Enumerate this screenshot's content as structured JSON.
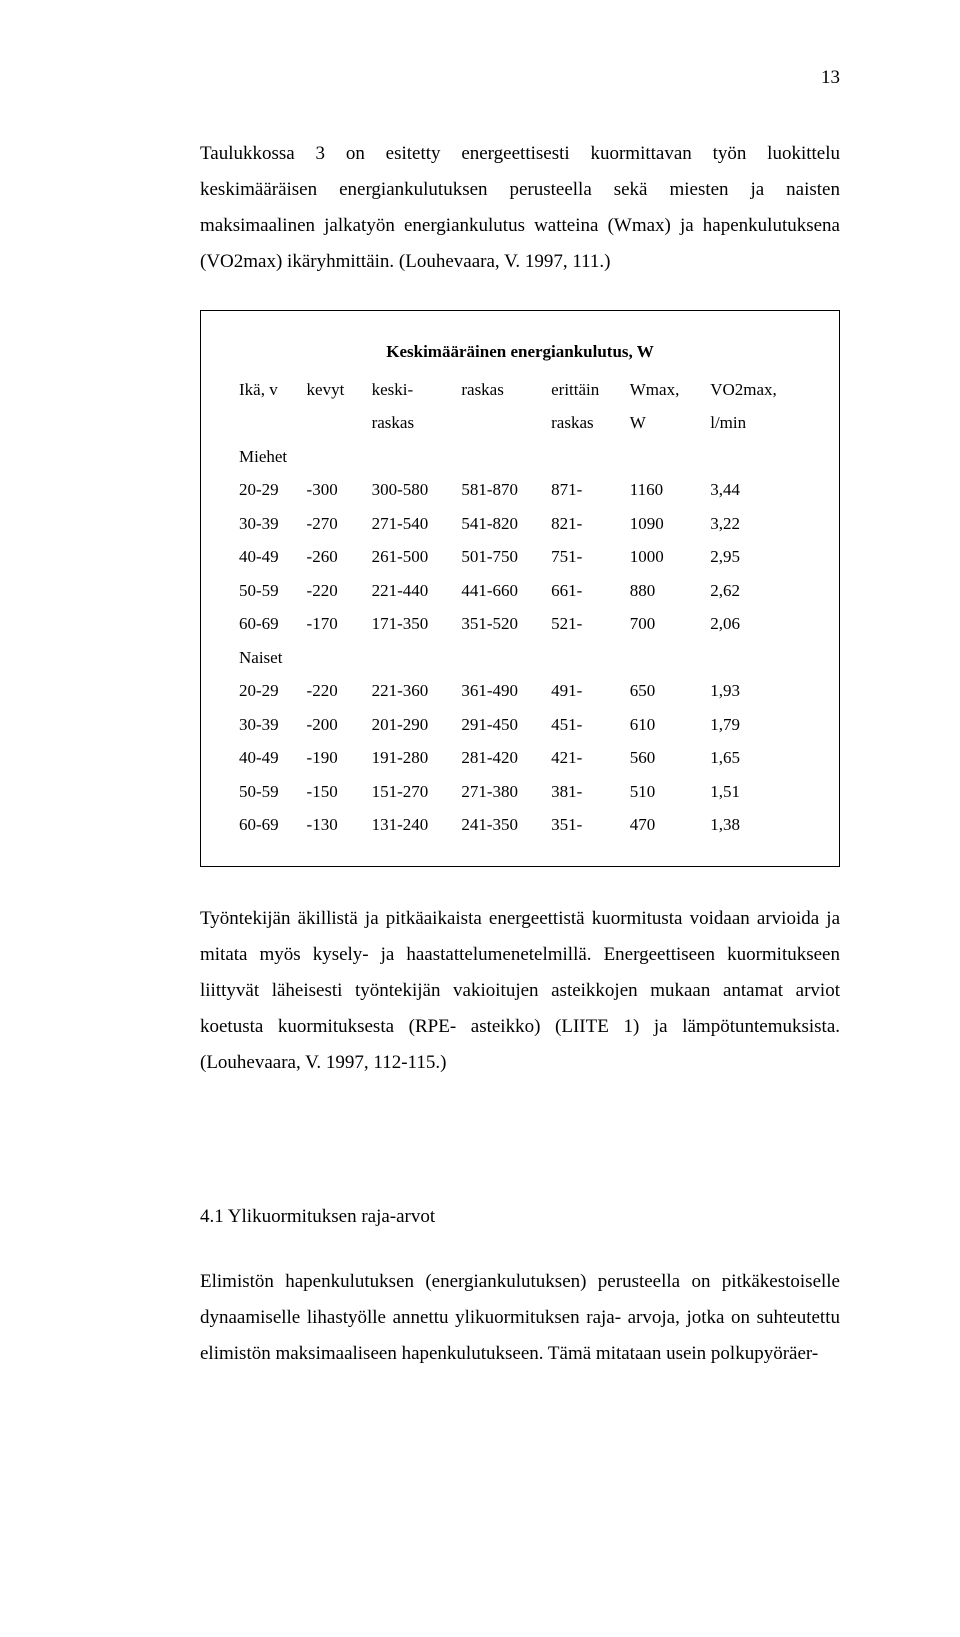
{
  "pageNumber": "13",
  "para1": "Taulukkossa 3 on esitetty energeettisesti kuormittavan työn luokittelu keskimääräisen energiankulutuksen perusteella sekä miesten ja naisten maksimaalinen jalkatyön energiankulutus watteina (Wmax) ja hapenkulutuksena (VO2max) ikäryhmittäin. (Louhevaara, V. 1997, 111.)",
  "table": {
    "title": "Keskimääräinen energiankulutus, W",
    "header": {
      "col1_l1": "Ikä, v",
      "col2_l1": "kevyt",
      "col3_l1": "keski-",
      "col4_l1": "raskas",
      "col5_l1": "erittäin",
      "col6_l1": "Wmax,",
      "col7_l1": "VO2max,",
      "col3_l2": "raskas",
      "col5_l2": "raskas",
      "col6_l2": "W",
      "col7_l2": "l/min"
    },
    "menLabel": "Miehet",
    "menRows": [
      [
        "20-29",
        "-300",
        "300-580",
        "581-870",
        "871-",
        "1160",
        "3,44"
      ],
      [
        "30-39",
        "-270",
        "271-540",
        "541-820",
        "821-",
        "1090",
        "3,22"
      ],
      [
        "40-49",
        "-260",
        "261-500",
        "501-750",
        "751-",
        "1000",
        "2,95"
      ],
      [
        "50-59",
        "-220",
        "221-440",
        "441-660",
        "661-",
        "880",
        "2,62"
      ],
      [
        "60-69",
        "-170",
        "171-350",
        "351-520",
        "521-",
        "700",
        "2,06"
      ]
    ],
    "womenLabel": "Naiset",
    "womenRows": [
      [
        "20-29",
        "-220",
        "221-360",
        "361-490",
        "491-",
        "650",
        "1,93"
      ],
      [
        "30-39",
        "-200",
        "201-290",
        "291-450",
        "451-",
        "610",
        "1,79"
      ],
      [
        "40-49",
        "-190",
        "191-280",
        "281-420",
        "421-",
        "560",
        "1,65"
      ],
      [
        "50-59",
        "-150",
        "151-270",
        "271-380",
        "381-",
        "510",
        "1,51"
      ],
      [
        "60-69",
        "-130",
        "131-240",
        "241-350",
        "351-",
        "470",
        "1,38"
      ]
    ]
  },
  "para2": "Työntekijän äkillistä ja pitkäaikaista energeettistä kuormitusta voidaan arvioida ja mitata myös kysely- ja haastattelumenetelmillä. Energeettiseen kuormitukseen liittyvät läheisesti työntekijän vakioitujen asteikkojen mukaan antamat arviot koetusta kuormituksesta (RPE- asteikko) (LIITE 1) ja lämpötuntemuksista. (Louhevaara, V. 1997, 112-115.)",
  "subheading": "4.1 Ylikuormituksen raja-arvot",
  "para3": "Elimistön hapenkulutuksen (energiankulutuksen) perusteella on pitkäkestoiselle dynaamiselle lihastyölle annettu ylikuormituksen raja- arvoja, jotka on suhteutettu elimistön maksimaaliseen hapenkulutukseen. Tämä mitataan usein polkupyöräer-"
}
